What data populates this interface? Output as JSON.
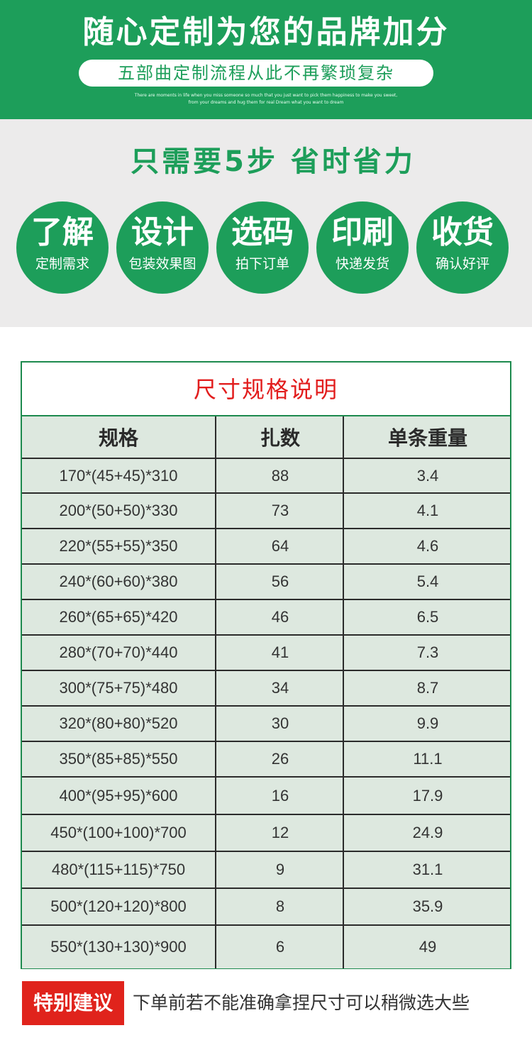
{
  "banner": {
    "title": "随心定制为您的品牌加分",
    "subtitle": "五部曲定制流程从此不再繁琐复杂",
    "english_line1": "There are moments in life when you miss someone so much that you just want to pick them happiness to make you sweet,",
    "english_line2": "from your dreams and hug them for real Dream what you want to dream"
  },
  "steps": {
    "title": "只需要5步 省时省力",
    "items": [
      {
        "big": "了解",
        "small": "定制需求"
      },
      {
        "big": "设计",
        "small": "包装效果图"
      },
      {
        "big": "选码",
        "small": "拍下订单"
      },
      {
        "big": "印刷",
        "small": "快递发货"
      },
      {
        "big": "收货",
        "small": "确认好评"
      }
    ]
  },
  "table": {
    "caption": "尺寸规格说明",
    "headers": [
      "规格",
      "扎数",
      "单条重量"
    ],
    "rows": [
      [
        "170*(45+45)*310",
        "88",
        "3.4"
      ],
      [
        "200*(50+50)*330",
        "73",
        "4.1"
      ],
      [
        "220*(55+55)*350",
        "64",
        "4.6"
      ],
      [
        "240*(60+60)*380",
        "56",
        "5.4"
      ],
      [
        "260*(65+65)*420",
        "46",
        "6.5"
      ],
      [
        "280*(70+70)*440",
        "41",
        "7.3"
      ],
      [
        "300*(75+75)*480",
        "34",
        "8.7"
      ],
      [
        "320*(80+80)*520",
        "30",
        "9.9"
      ],
      [
        "350*(85+85)*550",
        "26",
        "11.1"
      ],
      [
        "400*(95+95)*600",
        "16",
        "17.9"
      ],
      [
        "450*(100+100)*700",
        "12",
        "24.9"
      ],
      [
        "480*(115+115)*750",
        "9",
        "31.1"
      ],
      [
        "500*(120+120)*800",
        "8",
        "35.9"
      ],
      [
        "550*(130+130)*900",
        "6",
        "49"
      ]
    ]
  },
  "tip": {
    "badge": "特别建议",
    "text": "下单前若不能准确拿捏尺寸可以稍微选大些"
  },
  "colors": {
    "brand_green": "#1d9e5a",
    "alert_red": "#e0231c",
    "caption_red": "#e21d1d",
    "table_fill": "#dde8df"
  }
}
